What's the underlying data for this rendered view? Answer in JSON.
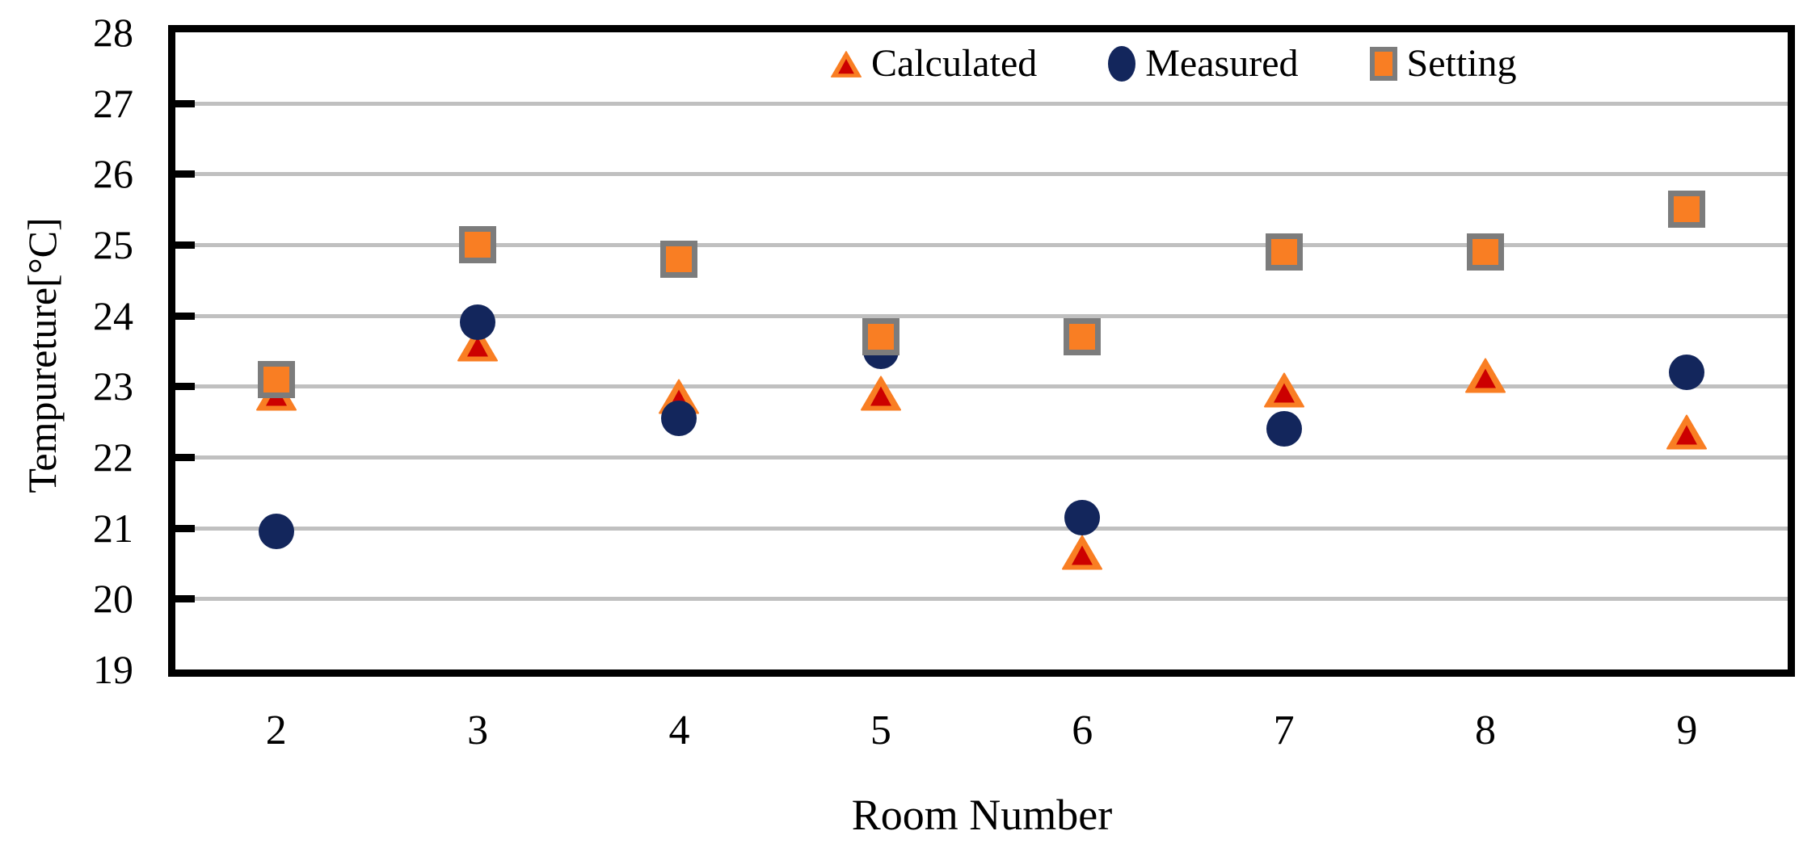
{
  "figure_title": "",
  "chart_data": {
    "type": "scatter",
    "title": "",
    "xlabel": "Room Number",
    "ylabel": "Tempureture[°C]",
    "x_categories": [
      2,
      3,
      4,
      5,
      6,
      7,
      8,
      9
    ],
    "ylim": [
      19,
      28
    ],
    "ytick_step": 1,
    "yticks": [
      19,
      20,
      21,
      22,
      23,
      24,
      25,
      26,
      27,
      28
    ],
    "grid": "horizontal-only",
    "legend_position": "top-inside",
    "series": [
      {
        "name": "Calculated",
        "marker": "triangle",
        "values": [
          22.9,
          23.6,
          22.85,
          22.9,
          20.65,
          22.95,
          23.15,
          22.35
        ]
      },
      {
        "name": "Measured",
        "marker": "circle",
        "values": [
          20.95,
          23.9,
          22.55,
          23.5,
          21.15,
          22.4,
          null,
          23.2
        ]
      },
      {
        "name": "Setting",
        "marker": "square",
        "values": [
          23.1,
          25.0,
          24.8,
          23.7,
          23.7,
          24.9,
          24.9,
          25.5
        ]
      }
    ]
  },
  "colors": {
    "calculated_fill": "#F97E23",
    "calculated_inner": "#CC0000",
    "measured_fill": "#13265C",
    "setting_fill": "#F97E23",
    "setting_border": "#7C7C7C",
    "gridline": "#C0C0C0",
    "axis_frame": "#000000",
    "background": "#FFFFFF"
  }
}
